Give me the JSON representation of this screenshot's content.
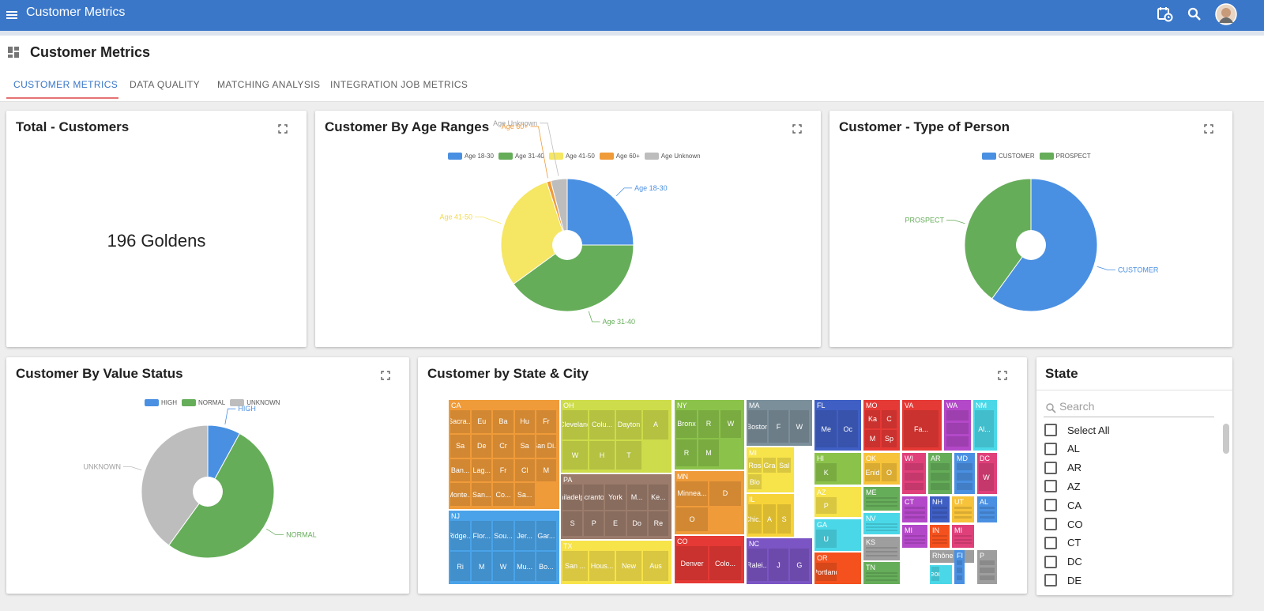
{
  "app": {
    "title": "Customer Metrics"
  },
  "page": {
    "title": "Customer Metrics"
  },
  "tabs": [
    {
      "label": "CUSTOMER METRICS",
      "active": true
    },
    {
      "label": "DATA QUALITY",
      "active": false
    },
    {
      "label": "MATCHING ANALYSIS",
      "active": false
    },
    {
      "label": "INTEGRATION JOB METRICS",
      "active": false
    }
  ],
  "cards": {
    "total": {
      "title": "Total - Customers",
      "value": "196 Goldens"
    },
    "age": {
      "title": "Customer By Age Ranges"
    },
    "person": {
      "title": "Customer - Type of Person"
    },
    "value_status": {
      "title": "Customer By Value Status"
    },
    "state_city": {
      "title": "Customer by State & City"
    }
  },
  "colors": {
    "appbar": "#3a77c9",
    "blue": "#4a90e2",
    "green": "#66ad5a",
    "yellow": "#f5e663",
    "orange": "#f09b3a",
    "gray": "#bdbdbd"
  },
  "icons": [
    "menu-icon",
    "calendar-clock-icon",
    "search-icon",
    "avatar",
    "dashboard-icon",
    "expand-icon"
  ],
  "chart_data": [
    {
      "type": "pie",
      "title": "Customer By Age Ranges",
      "legend_position": "top",
      "categories": [
        "Age 18-30",
        "Age 31-40",
        "Age 41-50",
        "Age 60+",
        "Age Unknown"
      ],
      "values": [
        25,
        40,
        30,
        1,
        4
      ],
      "colors": [
        "#4a90e2",
        "#66ad5a",
        "#f5e663",
        "#f09b3a",
        "#bdbdbd"
      ],
      "slice_labels": [
        "Age 18-30",
        "Age 31-40",
        "Age 41-50",
        "Age 60+",
        "Age Unknown"
      ]
    },
    {
      "type": "pie",
      "title": "Customer - Type of Person",
      "legend_position": "top",
      "categories": [
        "CUSTOMER",
        "PROSPECT"
      ],
      "values": [
        60,
        40
      ],
      "colors": [
        "#4a90e2",
        "#66ad5a"
      ],
      "slice_labels": [
        "CUSTOMER",
        "PROSPECT"
      ]
    },
    {
      "type": "pie",
      "title": "Customer By Value Status",
      "legend_position": "top",
      "categories": [
        "HIGH",
        "NORMAL",
        "UNKNOWN"
      ],
      "values": [
        8,
        52,
        40
      ],
      "colors": [
        "#4a90e2",
        "#66ad5a",
        "#bdbdbd"
      ],
      "slice_labels": [
        "HIGH",
        "NORMAL",
        "UNKNOWN"
      ]
    }
  ],
  "treemap": {
    "groups": [
      {
        "state": "CA",
        "color": "#f09b3a",
        "cities": [
          "Sacra...",
          "Eu",
          "Ba",
          "Hu",
          "Fr",
          "Sa",
          "De",
          "Cr",
          "Sa",
          "San Di...",
          "Ban...",
          "Lag...",
          "Fr",
          "Cl",
          "M",
          "Monte...",
          "San...",
          "Co...",
          "Sa..."
        ]
      },
      {
        "state": "NJ",
        "color": "#4aa3e8",
        "cities": [
          "Ridge...",
          "Flor...",
          "Sou...",
          "Jer...",
          "Gar...",
          "Ri",
          "M",
          "W",
          "Mu...",
          "Bo..."
        ]
      },
      {
        "state": "OH",
        "color": "#cddc4a",
        "cities": [
          "Cleveland",
          "Colu...",
          "Dayton",
          "A",
          "W",
          "H",
          "T"
        ]
      },
      {
        "state": "PA",
        "color": "#9b7b6b",
        "cities": [
          "Philadelp...",
          "Scranton",
          "York",
          "M...",
          "Ke...",
          "S",
          "P",
          "E",
          "Do",
          "Re"
        ]
      },
      {
        "state": "TX",
        "color": "#f7e34a",
        "cities": [
          "San ...",
          "Hous...",
          "New",
          "Aus"
        ]
      },
      {
        "state": "NY",
        "color": "#8bc34a",
        "cities": [
          "Bronx",
          "R",
          "W",
          "R",
          "M"
        ]
      },
      {
        "state": "MN",
        "color": "#f09b3a",
        "cities": [
          "Minnea...",
          "D",
          "O"
        ]
      },
      {
        "state": "CO",
        "color": "#e53935",
        "cities": [
          "Denver",
          "Colo..."
        ]
      },
      {
        "state": "MA",
        "color": "#7b8f9b",
        "cities": [
          "Boston",
          "F",
          "W"
        ]
      },
      {
        "state": "MI",
        "color": "#f7e34a",
        "cities": [
          "Ros",
          "Gra",
          "Sal",
          "Blo"
        ]
      },
      {
        "state": "IL",
        "color": "#f7d33a",
        "cities": [
          "Chic...",
          "A",
          "S"
        ]
      },
      {
        "state": "NC",
        "color": "#7b55c4",
        "cities": [
          "Ralei...",
          "J",
          "G"
        ]
      },
      {
        "state": "FL",
        "color": "#3f5fc4",
        "cities": [
          "Me",
          "Oc"
        ]
      },
      {
        "state": "MO",
        "color": "#e53935",
        "cities": [
          "Ka",
          "C",
          "M",
          "Sp"
        ]
      },
      {
        "state": "VA",
        "color": "#e53935",
        "cities": [
          "Fa..."
        ]
      },
      {
        "state": "WA",
        "color": "#b348c8",
        "cities": []
      },
      {
        "state": "NM",
        "color": "#4ad8e8",
        "cities": [
          "Al..."
        ]
      },
      {
        "state": "HI",
        "color": "#8bc34a",
        "cities": [
          "K"
        ]
      },
      {
        "state": "OK",
        "color": "#f7c33a",
        "cities": [
          "Enid",
          "O"
        ]
      },
      {
        "state": "WI",
        "color": "#e0407a",
        "cities": []
      },
      {
        "state": "AR",
        "color": "#66ad5a",
        "cities": []
      },
      {
        "state": "MD",
        "color": "#4a90e2",
        "cities": []
      },
      {
        "state": "DC",
        "color": "#e0407a",
        "cities": [
          "W"
        ]
      },
      {
        "state": "AZ",
        "color": "#f7e34a",
        "cities": [
          "P"
        ]
      },
      {
        "state": "ME",
        "color": "#66ad5a",
        "cities": []
      },
      {
        "state": "CT",
        "color": "#b348c8",
        "cities": []
      },
      {
        "state": "NH",
        "color": "#3f5fc4",
        "cities": []
      },
      {
        "state": "UT",
        "color": "#f7c33a",
        "cities": []
      },
      {
        "state": "AL",
        "color": "#4a90e2",
        "cities": []
      },
      {
        "state": "NV",
        "color": "#4ad8e8",
        "cities": []
      },
      {
        "state": "MI",
        "color": "#b348c8",
        "cities": []
      },
      {
        "state": "IN",
        "color": "#f4511e",
        "cities": []
      },
      {
        "state": "MI",
        "color": "#e0407a",
        "cities": []
      },
      {
        "state": "GA",
        "color": "#4ad8e8",
        "cities": [
          "U"
        ]
      },
      {
        "state": "KS",
        "color": "#9e9e9e",
        "cities": []
      },
      {
        "state": "OR",
        "color": "#f4511e",
        "cities": [
          "Portland"
        ]
      },
      {
        "state": "TN",
        "color": "#66ad5a",
        "cities": []
      },
      {
        "state": "Rhône",
        "color": "#9e9e9e",
        "cities": []
      },
      {
        "state": "FI",
        "color": "#4a90e2",
        "cities": []
      },
      {
        "state": "P",
        "color": "#9e9e9e",
        "cities": []
      },
      {
        "state": "",
        "color": "#4ad8e8",
        "cities": [
          "Geor..."
        ]
      }
    ]
  },
  "state_filter": {
    "title": "State",
    "search_placeholder": "Search",
    "options": [
      "Select All",
      "AL",
      "AR",
      "AZ",
      "CA",
      "CO",
      "CT",
      "DC",
      "DE"
    ]
  }
}
